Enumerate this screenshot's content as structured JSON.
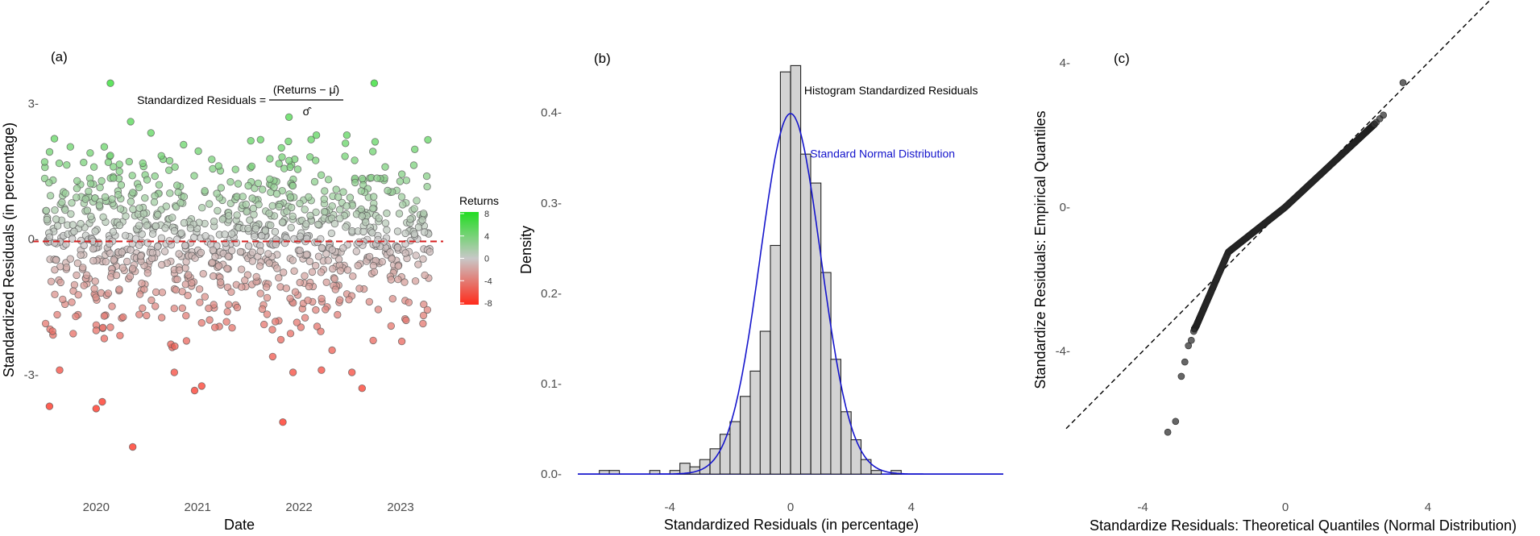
{
  "chart_data": [
    {
      "panel": "(a)",
      "type": "scatter",
      "xlabel": "Date",
      "ylabel": "Standardized Residuals (in percentage)",
      "xticks": [
        {
          "label": "2020",
          "value": 2020.0
        },
        {
          "label": "2021",
          "value": 2021.0
        },
        {
          "label": "2022",
          "value": 2022.0
        },
        {
          "label": "2023",
          "value": 2023.0
        }
      ],
      "yticks": [
        3,
        0,
        -3
      ],
      "ytick_labels": [
        "3-",
        "0-",
        "-3-"
      ],
      "xlim": [
        2019.45,
        2023.5
      ],
      "ylim": [
        -5.5,
        3.9
      ],
      "reference_line": {
        "y": -0.05,
        "style": "dashed",
        "color": "#d62020"
      },
      "formula": {
        "lhs": "Standardized Residuals =",
        "numerator": "(Returns − μ̂)",
        "denominator": "σ̂"
      },
      "legend": {
        "title": "Returns",
        "position": "right",
        "ticks": [
          "8",
          "4",
          "0",
          "-4",
          "-8"
        ],
        "range": [
          -8,
          8
        ],
        "colors": {
          "high": "#22dd22",
          "mid": "#c8c8c8",
          "low": "#ff2a1a"
        }
      },
      "n_points": 1000,
      "points": [
        {
          "x": 2020.22,
          "y": 3.45
        },
        {
          "x": 2020.42,
          "y": 2.6
        },
        {
          "x": 2020.62,
          "y": 2.35
        },
        {
          "x": 2021.98,
          "y": 2.7
        },
        {
          "x": 2022.55,
          "y": 2.3
        },
        {
          "x": 2022.25,
          "y": 2.3
        },
        {
          "x": 2020.22,
          "y": 1.85
        },
        {
          "x": 2020.2,
          "y": 1.7
        },
        {
          "x": 2020.25,
          "y": 1.6
        },
        {
          "x": 2020.16,
          "y": -1.7
        },
        {
          "x": 2020.22,
          "y": -1.95
        },
        {
          "x": 2020.16,
          "y": -2.2
        },
        {
          "x": 2019.62,
          "y": -3.7
        },
        {
          "x": 2019.72,
          "y": -2.9
        },
        {
          "x": 2020.08,
          "y": -3.75
        },
        {
          "x": 2020.14,
          "y": -3.6
        },
        {
          "x": 2020.44,
          "y": -4.6
        },
        {
          "x": 2020.85,
          "y": -2.95
        },
        {
          "x": 2021.05,
          "y": -3.35
        },
        {
          "x": 2021.12,
          "y": -3.25
        },
        {
          "x": 2021.92,
          "y": -4.05
        },
        {
          "x": 2022.02,
          "y": -2.95
        },
        {
          "x": 2022.3,
          "y": -2.9
        },
        {
          "x": 2022.6,
          "y": -2.95
        },
        {
          "x": 2022.7,
          "y": -3.3
        },
        {
          "x": 2022.82,
          "y": 3.45
        },
        {
          "x": 2021.82,
          "y": -2.6
        },
        {
          "x": 2020.2,
          "y": -1.2
        },
        {
          "x": 2020.28,
          "y": -0.8
        },
        {
          "x": 2021.7,
          "y": 2.2
        }
      ]
    },
    {
      "panel": "(b)",
      "type": "bar",
      "xlabel": "Standardized Residuals (in percentage)",
      "ylabel": "Density",
      "xticks": [
        -4,
        0,
        4
      ],
      "yticks": [
        0.0,
        0.1,
        0.2,
        0.3,
        0.4
      ],
      "ytick_labels": [
        "0.0-",
        "0.1-",
        "0.2-",
        "0.3-",
        "0.4-"
      ],
      "xlim": [
        -7.05,
        7.05
      ],
      "ylim": [
        -0.015,
        0.455
      ],
      "bin_width": 0.333,
      "bins": [
        {
          "x": -6.17,
          "density": 0.004
        },
        {
          "x": -5.84,
          "density": 0.004
        },
        {
          "x": -4.5,
          "density": 0.004
        },
        {
          "x": -3.83,
          "density": 0.004
        },
        {
          "x": -3.5,
          "density": 0.012
        },
        {
          "x": -3.17,
          "density": 0.008
        },
        {
          "x": -2.84,
          "density": 0.016
        },
        {
          "x": -2.5,
          "density": 0.028
        },
        {
          "x": -2.17,
          "density": 0.044
        },
        {
          "x": -1.84,
          "density": 0.058
        },
        {
          "x": -1.5,
          "density": 0.086
        },
        {
          "x": -1.17,
          "density": 0.114
        },
        {
          "x": -0.84,
          "density": 0.158
        },
        {
          "x": -0.5,
          "density": 0.253
        },
        {
          "x": -0.17,
          "density": 0.445
        },
        {
          "x": 0.17,
          "density": 0.452
        },
        {
          "x": 0.5,
          "density": 0.354
        },
        {
          "x": 0.84,
          "density": 0.322
        },
        {
          "x": 1.17,
          "density": 0.223
        },
        {
          "x": 1.5,
          "density": 0.127
        },
        {
          "x": 1.84,
          "density": 0.069
        },
        {
          "x": 2.17,
          "density": 0.038
        },
        {
          "x": 2.5,
          "density": 0.016
        },
        {
          "x": 2.84,
          "density": 0.004
        },
        {
          "x": 3.5,
          "density": 0.004
        }
      ],
      "curve": {
        "name": "Standard Normal Distribution",
        "mean": 0,
        "sd": 1,
        "color": "#1515cc"
      },
      "annotations": [
        {
          "text": "Histogram Standardized Residuals",
          "x": 0.45,
          "y": 0.42,
          "color": "#000000"
        },
        {
          "text": "Standard Normal Distribution",
          "x": 0.65,
          "y": 0.35,
          "color": "#1515cc"
        }
      ]
    },
    {
      "panel": "(c)",
      "type": "scatter",
      "xlabel": "Standardize Residuals: Theoretical Quantiles (Normal Distribution)",
      "ylabel": "Standardize Residuals: Empirical Quantiles",
      "xticks": [
        -4,
        0,
        4
      ],
      "yticks": [
        4,
        0,
        -4
      ],
      "ytick_labels": [
        "4-",
        "0-",
        "-4-"
      ],
      "xlim": [
        -6.15,
        6.85
      ],
      "ylim": [
        -7.9,
        4.0
      ],
      "reference_line": {
        "slope": 1,
        "intercept": 0,
        "style": "dashed"
      },
      "n_points": 1000,
      "tail_points": [
        {
          "x": -3.3,
          "y": -6.25
        },
        {
          "x": -3.08,
          "y": -5.95
        },
        {
          "x": -2.92,
          "y": -4.7
        },
        {
          "x": -2.82,
          "y": -4.3
        },
        {
          "x": -2.72,
          "y": -3.85
        },
        {
          "x": -2.64,
          "y": -3.7
        },
        {
          "x": -2.57,
          "y": -3.45
        },
        {
          "x": 2.55,
          "y": 2.35
        },
        {
          "x": 2.65,
          "y": 2.45
        },
        {
          "x": 2.75,
          "y": 2.55
        },
        {
          "x": 3.3,
          "y": 3.45
        }
      ]
    }
  ]
}
